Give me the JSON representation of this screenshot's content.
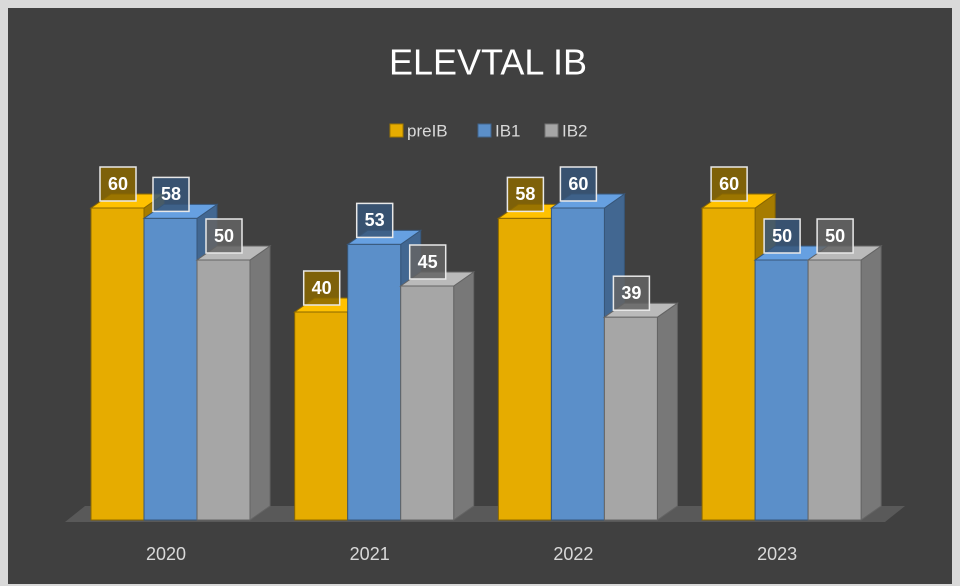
{
  "chart_data": {
    "type": "bar3d",
    "title": "ELEVTAL IB",
    "categories": [
      "2020",
      "2021",
      "2022",
      "2023"
    ],
    "series": [
      {
        "name": "preIB",
        "color": "#e6ac00",
        "values": [
          60,
          40,
          58,
          60
        ]
      },
      {
        "name": "IB1",
        "color": "#5b8fc9",
        "values": [
          58,
          53,
          60,
          50
        ]
      },
      {
        "name": "IB2",
        "color": "#a6a6a6",
        "values": [
          50,
          45,
          39,
          50
        ]
      }
    ],
    "legend": "top"
  }
}
